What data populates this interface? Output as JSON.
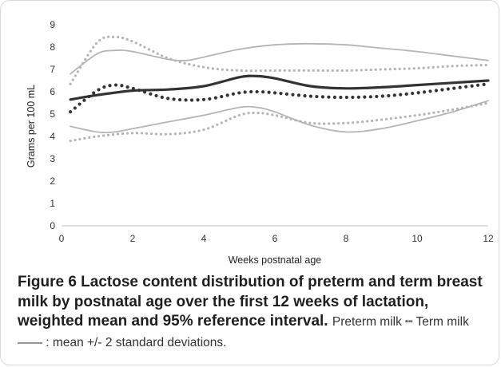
{
  "chart_data": {
    "type": "line",
    "xlabel": "Weeks postnatal age",
    "ylabel": "Grams per 100 mL",
    "xlim": [
      0,
      12
    ],
    "ylim": [
      0,
      9
    ],
    "x_ticks": [
      "0",
      "2",
      "4",
      "6",
      "8",
      "10",
      "12"
    ],
    "y_ticks": [
      "0",
      "1",
      "2",
      "3",
      "4",
      "5",
      "6",
      "7",
      "8",
      "9"
    ],
    "grid": false,
    "legend": "none",
    "colors": {
      "dark": "#333333",
      "light": "#b5b5b5"
    },
    "series": [
      {
        "style": "dotted",
        "color": "dark",
        "x": [
          0.25,
          1,
          1.5,
          2,
          3,
          4,
          5,
          5.5,
          6,
          7,
          8,
          9,
          10,
          11,
          12
        ],
        "values": [
          5.1,
          6.05,
          6.3,
          6.15,
          5.7,
          5.65,
          5.95,
          6.0,
          5.95,
          5.8,
          5.75,
          5.8,
          5.95,
          6.15,
          6.35
        ]
      },
      {
        "style": "dotted",
        "color": "light",
        "x": [
          0.25,
          1,
          1.5,
          2,
          3,
          4,
          5,
          6,
          7,
          8,
          9,
          10,
          11,
          12
        ],
        "values": [
          6.35,
          8.2,
          8.45,
          8.25,
          7.5,
          7.1,
          6.95,
          6.95,
          6.95,
          6.95,
          7.0,
          7.05,
          7.15,
          7.2
        ]
      },
      {
        "style": "dotted",
        "color": "light",
        "x": [
          0.25,
          1,
          2,
          3,
          4,
          5,
          5.5,
          6,
          7,
          8,
          9,
          10,
          11,
          12
        ],
        "values": [
          3.8,
          4.0,
          4.15,
          4.1,
          4.3,
          4.95,
          5.05,
          4.95,
          4.6,
          4.6,
          4.75,
          4.95,
          5.2,
          5.5
        ]
      },
      {
        "style": "solid",
        "color": "dark",
        "x": [
          0.25,
          1,
          2,
          3,
          4,
          5,
          5.5,
          6,
          7,
          8,
          9,
          10,
          11,
          12
        ],
        "values": [
          5.65,
          5.85,
          6.05,
          6.1,
          6.25,
          6.65,
          6.7,
          6.6,
          6.25,
          6.15,
          6.2,
          6.3,
          6.4,
          6.5
        ]
      },
      {
        "style": "solid",
        "color": "light",
        "x": [
          0.25,
          1,
          1.5,
          2,
          3,
          3.5,
          4,
          5,
          6,
          7,
          8,
          9,
          10,
          11,
          12
        ],
        "values": [
          6.8,
          7.7,
          7.85,
          7.8,
          7.45,
          7.4,
          7.55,
          7.9,
          8.1,
          8.15,
          8.1,
          7.95,
          7.8,
          7.6,
          7.4
        ]
      },
      {
        "style": "solid",
        "color": "light",
        "x": [
          0.25,
          1,
          1.5,
          2,
          3,
          4,
          5,
          5.5,
          6,
          7,
          8,
          9,
          10,
          11,
          12
        ],
        "values": [
          4.45,
          4.2,
          4.2,
          4.35,
          4.65,
          4.95,
          5.3,
          5.3,
          5.1,
          4.5,
          4.2,
          4.35,
          4.7,
          5.1,
          5.6
        ]
      }
    ]
  },
  "caption": {
    "bold": "Figure 6 Lactose content distribution of preterm and term breast milk by postnatal age over the first 12 weeks of lactation, weighted mean and 95% reference interval.",
    "rest": "Preterm milk ┉ Term milk —— : mean +/- 2 standard deviations."
  }
}
